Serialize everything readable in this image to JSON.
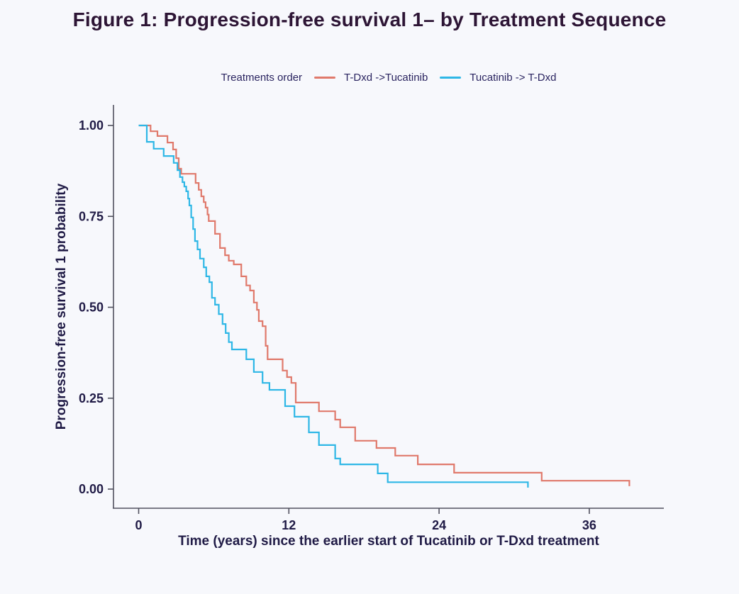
{
  "title": "Figure 1: Progression-free survival 1– by Treatment Sequence",
  "legend": {
    "title": "Treatments order",
    "items": [
      {
        "label": "T-Dxd ->Tucatinib",
        "color": "#e0796b"
      },
      {
        "label": "Tucatinib -> T-Dxd",
        "color": "#2eb7e6"
      }
    ]
  },
  "colors": {
    "background": "#f7f8fc",
    "axis_line": "#50505e",
    "tick_text": "#201b46",
    "title_text": "#2d1535",
    "legend_text": "#2a2460",
    "series_tdxd_first": "#e0796b",
    "series_tucatinib_first": "#2eb7e6"
  },
  "chart_data": {
    "type": "line",
    "subtype": "kaplan-meier-step",
    "title": "Figure 1: Progression-free survival 1– by Treatment Sequence",
    "xlabel": "Time (years) since the earlier start of Tucatinib or T-Dxd treatment",
    "ylabel": "Progression-free survival 1 probability",
    "xlim": [
      0,
      42
    ],
    "ylim": [
      0,
      1
    ],
    "xticks": [
      0,
      12,
      24,
      36
    ],
    "xtick_labels": [
      "0",
      "12",
      "24",
      "36"
    ],
    "yticks": [
      1.0,
      0.75,
      0.5,
      0.25,
      0.0
    ],
    "ytick_labels": [
      "1.00",
      "0.75",
      "0.50",
      "0.25",
      "0.00"
    ],
    "grid": false,
    "legend_position": "top",
    "legend_title": "Treatments order",
    "series": [
      {
        "name": "T-Dxd ->Tucatinib",
        "color": "#e0796b",
        "step": true,
        "points": [
          [
            0,
            1.0
          ],
          [
            0.95,
            0.984
          ],
          [
            1.5,
            0.971
          ],
          [
            2.3,
            0.953
          ],
          [
            2.75,
            0.934
          ],
          [
            3.0,
            0.91
          ],
          [
            3.2,
            0.881
          ],
          [
            3.4,
            0.867
          ],
          [
            4.55,
            0.842
          ],
          [
            4.8,
            0.823
          ],
          [
            5.0,
            0.805
          ],
          [
            5.2,
            0.789
          ],
          [
            5.35,
            0.774
          ],
          [
            5.5,
            0.755
          ],
          [
            5.6,
            0.737
          ],
          [
            6.1,
            0.702
          ],
          [
            6.5,
            0.663
          ],
          [
            6.9,
            0.643
          ],
          [
            7.2,
            0.628
          ],
          [
            7.6,
            0.618
          ],
          [
            8.2,
            0.585
          ],
          [
            8.6,
            0.56
          ],
          [
            8.9,
            0.546
          ],
          [
            9.2,
            0.513
          ],
          [
            9.45,
            0.493
          ],
          [
            9.6,
            0.462
          ],
          [
            9.9,
            0.448
          ],
          [
            10.15,
            0.394
          ],
          [
            10.3,
            0.357
          ],
          [
            11.5,
            0.326
          ],
          [
            11.85,
            0.308
          ],
          [
            12.2,
            0.292
          ],
          [
            12.55,
            0.238
          ],
          [
            14.4,
            0.214
          ],
          [
            15.7,
            0.191
          ],
          [
            16.1,
            0.17
          ],
          [
            17.3,
            0.133
          ],
          [
            19.0,
            0.113
          ],
          [
            20.5,
            0.092
          ],
          [
            22.3,
            0.068
          ],
          [
            25.2,
            0.045
          ],
          [
            32.2,
            0.023
          ],
          [
            39.2,
            0.008
          ]
        ]
      },
      {
        "name": "Tucatinib -> T-Dxd",
        "color": "#2eb7e6",
        "step": true,
        "points": [
          [
            0,
            1.0
          ],
          [
            0.65,
            0.955
          ],
          [
            1.2,
            0.936
          ],
          [
            2.0,
            0.916
          ],
          [
            2.8,
            0.897
          ],
          [
            3.1,
            0.877
          ],
          [
            3.3,
            0.858
          ],
          [
            3.5,
            0.844
          ],
          [
            3.65,
            0.832
          ],
          [
            3.8,
            0.819
          ],
          [
            3.95,
            0.799
          ],
          [
            4.05,
            0.78
          ],
          [
            4.2,
            0.747
          ],
          [
            4.35,
            0.715
          ],
          [
            4.5,
            0.682
          ],
          [
            4.7,
            0.659
          ],
          [
            4.9,
            0.634
          ],
          [
            5.2,
            0.61
          ],
          [
            5.4,
            0.585
          ],
          [
            5.65,
            0.569
          ],
          [
            5.85,
            0.526
          ],
          [
            6.1,
            0.507
          ],
          [
            6.4,
            0.481
          ],
          [
            6.7,
            0.454
          ],
          [
            6.95,
            0.429
          ],
          [
            7.2,
            0.404
          ],
          [
            7.45,
            0.384
          ],
          [
            8.6,
            0.357
          ],
          [
            9.2,
            0.322
          ],
          [
            9.9,
            0.292
          ],
          [
            10.45,
            0.273
          ],
          [
            11.7,
            0.228
          ],
          [
            12.45,
            0.199
          ],
          [
            13.6,
            0.156
          ],
          [
            14.4,
            0.121
          ],
          [
            15.7,
            0.084
          ],
          [
            16.1,
            0.068
          ],
          [
            19.1,
            0.043
          ],
          [
            19.9,
            0.019
          ],
          [
            31.1,
            0.004
          ]
        ]
      }
    ]
  }
}
